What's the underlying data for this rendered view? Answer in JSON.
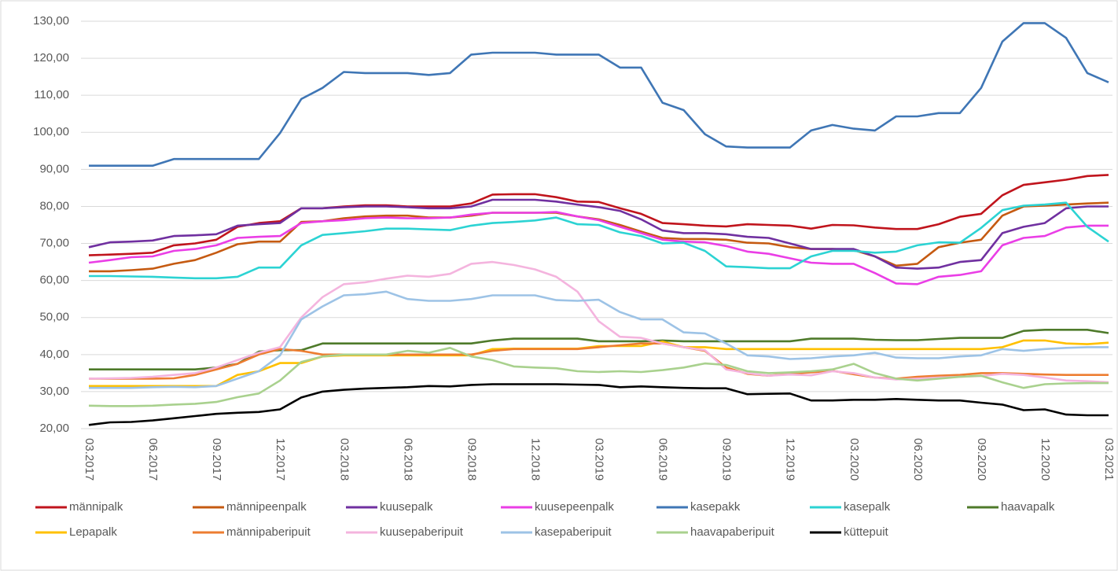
{
  "chart_data": {
    "type": "line",
    "categories": [
      "03.2017",
      null,
      null,
      "06.2017",
      null,
      null,
      "09.2017",
      null,
      null,
      "12.2017",
      null,
      null,
      "03.2018",
      null,
      null,
      "06.2018",
      null,
      null,
      "09.2018",
      null,
      null,
      "12.2018",
      null,
      null,
      "03.2019",
      null,
      null,
      "06.2019",
      null,
      null,
      "09.2019",
      null,
      null,
      "12.2019",
      null,
      null,
      "03.2020",
      null,
      null,
      "06.2020",
      null,
      null,
      "09.2020",
      null,
      null,
      "12.2020",
      null,
      null,
      "03.2021"
    ],
    "ylim": [
      20,
      130
    ],
    "yticks": [
      {
        "value": 20,
        "label": "20,00"
      },
      {
        "value": 30,
        "label": "30,00"
      },
      {
        "value": 40,
        "label": "40,00"
      },
      {
        "value": 50,
        "label": "50,00"
      },
      {
        "value": 60,
        "label": "60,00"
      },
      {
        "value": 70,
        "label": "70,00"
      },
      {
        "value": 80,
        "label": "80,00"
      },
      {
        "value": 90,
        "label": "90,00"
      },
      {
        "value": 100,
        "label": "100,00"
      },
      {
        "value": 110,
        "label": "110,00"
      },
      {
        "value": 120,
        "label": "120,00"
      },
      {
        "value": 130,
        "label": "130,00"
      }
    ],
    "grid": true,
    "legend": "bottom",
    "series": [
      {
        "name": "männipalk",
        "color": "#c0141c",
        "values": [
          66.8,
          67,
          67.2,
          67.5,
          69.5,
          70,
          71,
          74.5,
          75.5,
          76,
          79.5,
          79.5,
          80,
          80.3,
          80.3,
          80,
          80,
          80,
          80.8,
          83.2,
          83.3,
          83.3,
          82.5,
          81.3,
          81.2,
          79.5,
          78,
          75.5,
          75.2,
          74.8,
          74.6,
          75.2,
          75,
          74.8,
          74,
          75,
          74.9,
          74.3,
          73.9,
          73.9,
          75.2,
          77.2,
          78,
          83,
          85.8,
          86.5,
          87.2,
          88.2,
          88.5
        ]
      },
      {
        "name": "männipeenpalk",
        "color": "#c55a11",
        "values": [
          62.5,
          62.5,
          62.8,
          63.2,
          64.5,
          65.5,
          67.5,
          69.8,
          70.5,
          70.5,
          75.8,
          76,
          76.8,
          77.3,
          77.5,
          77.5,
          77,
          77,
          77.5,
          78.3,
          78.3,
          78.3,
          78.3,
          77.3,
          76.5,
          75,
          73.2,
          71.5,
          71.2,
          71.2,
          71,
          70.2,
          70,
          69,
          68.5,
          68.5,
          68.2,
          66.5,
          64,
          64.5,
          69,
          70.2,
          71,
          77.5,
          80,
          80.2,
          80.5,
          80.8,
          81
        ]
      },
      {
        "name": "kuusepalk",
        "color": "#7030a0",
        "values": [
          69,
          70.3,
          70.5,
          70.8,
          72,
          72.2,
          72.5,
          74.8,
          75.2,
          75.5,
          79.5,
          79.5,
          79.8,
          80,
          80,
          79.8,
          79.5,
          79.5,
          80,
          81.8,
          81.8,
          81.8,
          81.3,
          80.5,
          79.8,
          78.8,
          76.5,
          73.5,
          72.8,
          72.8,
          72.5,
          71.8,
          71.5,
          70,
          68.5,
          68.5,
          68.5,
          66.5,
          63.5,
          63.2,
          63.5,
          65,
          65.5,
          72.8,
          74.5,
          75.5,
          79.5,
          80,
          80
        ]
      },
      {
        "name": "kuusepeenpalk",
        "color": "#ea3ee6",
        "values": [
          64.8,
          65.5,
          66.3,
          66.5,
          68,
          68.5,
          69.5,
          71.5,
          71.8,
          72,
          75.5,
          76,
          76.3,
          76.8,
          77,
          76.8,
          76.8,
          77,
          77.8,
          78.3,
          78.3,
          78.3,
          78.5,
          77.3,
          76.3,
          74.5,
          72.8,
          71,
          70.5,
          70.3,
          69.3,
          67.8,
          67.2,
          66,
          64.8,
          64.5,
          64.5,
          62,
          59.2,
          59,
          61,
          61.5,
          62.5,
          69.5,
          71.5,
          72,
          74.3,
          74.8,
          74.8
        ]
      },
      {
        "name": "kasepakk",
        "color": "#3f76b5",
        "values": [
          91,
          91,
          91,
          91,
          92.8,
          92.8,
          92.8,
          92.8,
          92.8,
          99.8,
          109,
          112,
          116.3,
          116,
          116,
          116,
          115.5,
          116,
          121,
          121.5,
          121.5,
          121.5,
          121,
          121,
          121,
          117.5,
          117.5,
          108,
          106,
          99.5,
          96.2,
          95.9,
          95.9,
          95.9,
          100.5,
          102,
          101,
          100.5,
          104.3,
          104.3,
          105.2,
          105.2,
          112,
          124.5,
          129.5,
          129.5,
          125.5,
          116,
          113.5
        ]
      },
      {
        "name": "kasepalk",
        "color": "#2cd3d3",
        "values": [
          61.2,
          61.2,
          61.1,
          61,
          60.8,
          60.6,
          60.6,
          61,
          63.5,
          63.5,
          69.5,
          72.3,
          72.8,
          73.3,
          74,
          74,
          73.8,
          73.6,
          74.8,
          75.5,
          75.8,
          76.2,
          77,
          75.2,
          75,
          73,
          72,
          70,
          70.2,
          68,
          63.8,
          63.6,
          63.3,
          63.3,
          66.5,
          68,
          68,
          67.5,
          67.8,
          69.5,
          70.3,
          70.2,
          74.2,
          79,
          80.2,
          80.5,
          81,
          74.5,
          70.5
        ]
      },
      {
        "name": "haavapalk",
        "color": "#4e7a2a",
        "values": [
          36,
          36,
          36,
          36,
          36,
          36,
          36.5,
          37.5,
          40.8,
          41.2,
          41.2,
          43,
          43,
          43,
          43,
          43,
          43,
          43,
          43,
          43.8,
          44.3,
          44.3,
          44.3,
          44.3,
          43.6,
          43.6,
          43.6,
          43.8,
          43.6,
          43.6,
          43.6,
          43.6,
          43.6,
          43.6,
          44.3,
          44.3,
          44.3,
          44,
          43.9,
          43.9,
          44.2,
          44.5,
          44.5,
          44.5,
          46.4,
          46.7,
          46.7,
          46.7,
          45.8
        ]
      },
      {
        "name": "Lepapalk",
        "color": "#ffc000",
        "values": [
          31.5,
          31.5,
          31.5,
          31.5,
          31.5,
          31.5,
          31.5,
          34.5,
          35.5,
          37.7,
          37.7,
          39.5,
          39.8,
          39.8,
          39.8,
          39.8,
          39.8,
          39.8,
          39.8,
          41.5,
          41.6,
          41.6,
          41.6,
          41.6,
          42.3,
          42.3,
          42.3,
          43.5,
          42,
          42,
          41.5,
          41.5,
          41.5,
          41.5,
          41.5,
          41.5,
          41.5,
          41.5,
          41.5,
          41.5,
          41.5,
          41.5,
          41.5,
          42,
          43.8,
          43.8,
          43,
          42.8,
          43.2
        ]
      },
      {
        "name": "männipaberipuit",
        "color": "#ed7d31",
        "values": [
          33.5,
          33.5,
          33.5,
          33.5,
          33.6,
          34.5,
          36,
          37.5,
          40,
          41.5,
          41,
          40,
          40,
          40,
          40,
          40,
          40,
          40,
          40,
          41,
          41.5,
          41.5,
          41.5,
          41.5,
          42,
          42.5,
          43,
          43,
          42,
          41,
          36.5,
          34.8,
          34.3,
          34.8,
          35.2,
          35.6,
          34.7,
          33.8,
          33.5,
          34,
          34.3,
          34.5,
          35,
          35,
          34.8,
          34.6,
          34.5,
          34.5,
          34.5
        ]
      },
      {
        "name": "kuusepaberipuit",
        "color": "#f4b4de",
        "values": [
          33.5,
          33.6,
          33.7,
          34,
          34.5,
          35,
          36.5,
          38.5,
          40.5,
          42,
          50,
          55.5,
          59,
          59.5,
          60.5,
          61.3,
          61,
          61.8,
          64.5,
          65,
          64.2,
          63,
          61,
          57,
          49,
          44.8,
          44.5,
          43,
          42,
          41.2,
          36,
          35,
          34.3,
          34.6,
          34.4,
          35.5,
          35,
          33.8,
          33.3,
          33.5,
          33.8,
          34,
          34.2,
          34.8,
          34.5,
          33.8,
          33,
          32.8,
          32.5
        ]
      },
      {
        "name": "kasepaberipuit",
        "color": "#9dc3e6",
        "values": [
          31,
          31,
          31,
          31.2,
          31.3,
          31.2,
          31.5,
          33.5,
          35.5,
          39.8,
          49.5,
          53,
          56,
          56.3,
          57,
          55,
          54.5,
          54.5,
          55,
          56,
          56,
          56,
          54.7,
          54.5,
          54.8,
          51.5,
          49.5,
          49.5,
          46,
          45.7,
          43,
          39.8,
          39.5,
          38.8,
          39,
          39.5,
          39.8,
          40.5,
          39.2,
          39,
          39,
          39.5,
          39.8,
          41.5,
          41,
          41.5,
          41.8,
          42,
          42
        ]
      },
      {
        "name": "haavapaberipuit",
        "color": "#a9d18e",
        "values": [
          26.2,
          26.1,
          26.1,
          26.2,
          26.5,
          26.7,
          27.2,
          28.5,
          29.5,
          33,
          38,
          39.5,
          40,
          40,
          40,
          41,
          40.5,
          41.8,
          39.5,
          38.5,
          36.8,
          36.5,
          36.3,
          35.5,
          35.3,
          35.5,
          35.3,
          35.8,
          36.5,
          37.6,
          37.2,
          35.5,
          35,
          35.2,
          35.5,
          36,
          37.5,
          35,
          33.5,
          33,
          33.5,
          34,
          34.3,
          32.5,
          31,
          32,
          32.2,
          32.3,
          32.3
        ]
      },
      {
        "name": "küttepuit",
        "color": "#000000",
        "values": [
          21,
          21.7,
          21.8,
          22.2,
          22.8,
          23.4,
          24,
          24.3,
          24.5,
          25.2,
          28.4,
          30,
          30.5,
          30.8,
          31,
          31.2,
          31.5,
          31.4,
          31.8,
          32,
          32,
          32,
          32,
          31.9,
          31.8,
          31.2,
          31.4,
          31.2,
          31,
          30.9,
          30.9,
          29.3,
          29.4,
          29.5,
          27.6,
          27.6,
          27.8,
          27.8,
          28,
          27.8,
          27.6,
          27.6,
          27,
          26.5,
          25,
          25.2,
          23.8,
          23.6,
          23.6
        ]
      }
    ]
  }
}
